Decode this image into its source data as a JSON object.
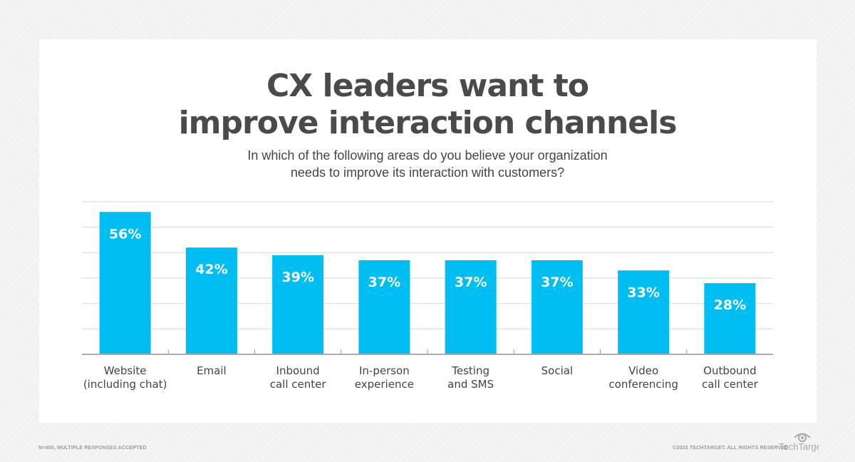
{
  "title_lines": [
    "CX leaders want to",
    "improve interaction channels"
  ],
  "subtitle_lines": [
    "In which of the following areas do you believe your organization",
    "needs to improve its interaction with customers?"
  ],
  "chart_data": {
    "type": "bar",
    "categories": [
      [
        "Website",
        "(including chat)"
      ],
      [
        "Email"
      ],
      [
        "Inbound",
        "call center"
      ],
      [
        "In-person",
        "experience"
      ],
      [
        "Testing",
        "and SMS"
      ],
      [
        "Social"
      ],
      [
        "Video",
        "conferencing"
      ],
      [
        "Outbound",
        "call center"
      ]
    ],
    "values": [
      56,
      42,
      39,
      37,
      37,
      37,
      33,
      28
    ],
    "data_labels": [
      "56%",
      "42%",
      "39%",
      "37%",
      "37%",
      "37%",
      "33%",
      "28%"
    ],
    "ylim": [
      0,
      60
    ],
    "grid": true,
    "bar_color": "#00bdf2"
  },
  "footer": {
    "note": "N=400, MULTIPLE RESPONSES ACCEPTED",
    "copyright": "©2023 TECHTARGET. ALL RIGHTS RESERVED",
    "logo_text": "TechTarget"
  }
}
